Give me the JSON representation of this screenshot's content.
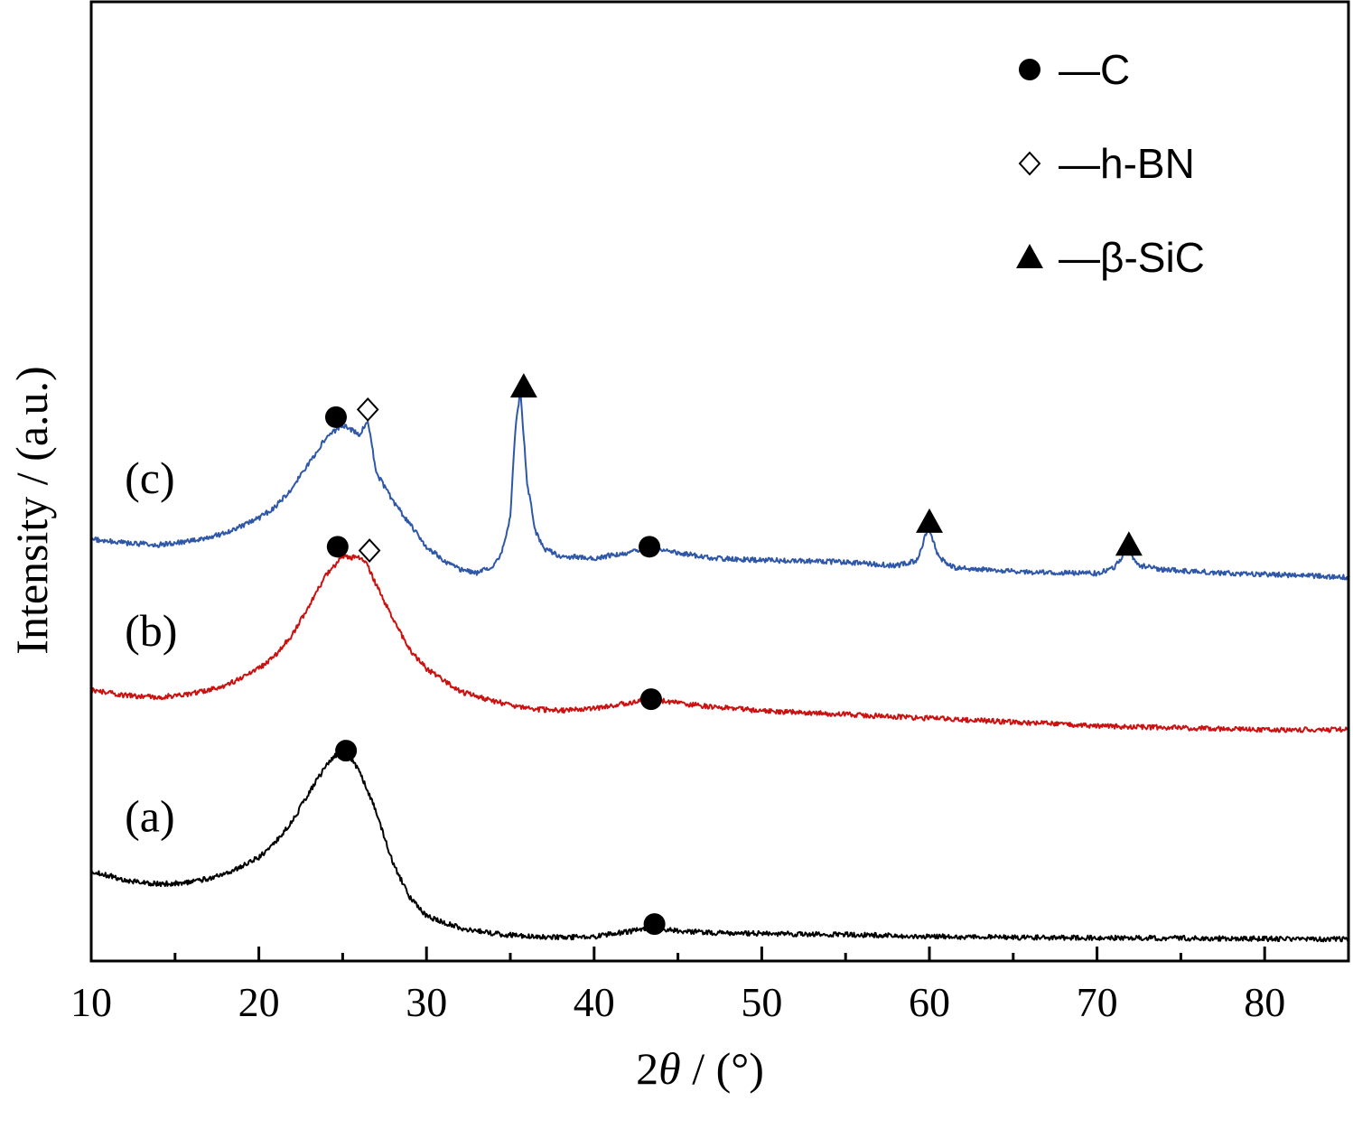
{
  "chart_data": {
    "type": "line",
    "title": "",
    "xlabel_prefix": "2",
    "xlabel_theta": "θ",
    "xlabel_suffix": " / (°)",
    "ylabel": "Intensity / (a.u.)",
    "xlim": [
      10,
      85
    ],
    "x_ticks": [
      10,
      20,
      30,
      40,
      50,
      60,
      70,
      80
    ],
    "x_minor_ticks": [
      15,
      25,
      35,
      45,
      55,
      65,
      75
    ],
    "y_ticks_shown": false,
    "grid": false,
    "legend_placement": "top-right",
    "legend": [
      {
        "marker": "circle",
        "label": "—C"
      },
      {
        "marker": "diamond",
        "label": "—h-BN"
      },
      {
        "marker": "triangle",
        "label": "—β-SiC"
      }
    ],
    "series": [
      {
        "name": "(a)",
        "color": "#000000",
        "x": [
          10,
          12,
          14,
          16,
          18,
          20,
          21,
          22,
          23,
          24,
          24.5,
          25,
          25.5,
          26,
          27,
          28,
          29,
          30,
          32,
          34,
          36,
          38,
          40,
          42,
          43.5,
          45,
          47,
          50,
          55,
          60,
          65,
          70,
          75,
          80,
          85
        ],
        "y": [
          36,
          31,
          29,
          30,
          34,
          43,
          51,
          62,
          77,
          91,
          96,
          98,
          95,
          88,
          67,
          40,
          22,
          12,
          6,
          3,
          1.5,
          1,
          1.5,
          4,
          6,
          4.5,
          3.5,
          3,
          2.5,
          1.5,
          1,
          0.8,
          0.6,
          0.3,
          0
        ]
      },
      {
        "name": "(b)",
        "color": "#cc1111",
        "x": [
          10,
          12,
          14,
          16,
          18,
          20,
          21,
          22,
          23,
          24,
          25,
          26,
          26.5,
          27,
          28,
          29,
          30,
          32,
          34,
          36,
          38,
          40,
          42,
          43.5,
          45,
          47,
          50,
          55,
          60,
          65,
          70,
          75,
          80,
          85
        ],
        "y": [
          131,
          128,
          127,
          129,
          133,
          142,
          149,
          160,
          175,
          191,
          201,
          200,
          196,
          186,
          168,
          152,
          142,
          130,
          125,
          121,
          120,
          121,
          124,
          126,
          124,
          122,
          120,
          118,
          116,
          114,
          112,
          111,
          110,
          110
        ]
      },
      {
        "name": "(c)",
        "color": "#2f57a8",
        "x": [
          10,
          12,
          14,
          16,
          18,
          20,
          21,
          22,
          23,
          24,
          25,
          26,
          26.5,
          27,
          28,
          29,
          30,
          31,
          32,
          33,
          34,
          34.5,
          35,
          35.3,
          35.6,
          36,
          36.5,
          37,
          38,
          40,
          42,
          43.5,
          45,
          47,
          50,
          55,
          58,
          59.3,
          59.9,
          60.6,
          61.5,
          65,
          70,
          71,
          71.8,
          72.6,
          74,
          78,
          82,
          85
        ],
        "y": [
          210,
          208,
          207,
          209,
          213,
          221,
          227,
          237,
          250,
          263,
          270,
          265,
          272,
          245,
          230,
          218,
          206,
          199,
          194,
          192,
          196,
          203,
          222,
          268,
          288,
          240,
          214,
          205,
          201,
          200,
          203,
          206,
          203,
          200,
          199,
          198,
          196,
          199,
          216,
          200,
          195,
          193,
          192,
          195,
          204,
          196,
          194,
          192,
          191,
          190
        ]
      }
    ],
    "phase_markers": [
      {
        "marker": "circle",
        "x": 25.2,
        "level": 99
      },
      {
        "marker": "circle",
        "x": 43.6,
        "level": 8
      },
      {
        "marker": "circle",
        "x": 24.7,
        "level": 206
      },
      {
        "marker": "circle",
        "x": 43.4,
        "level": 126
      },
      {
        "marker": "diamond",
        "x": 26.6,
        "level": 204
      },
      {
        "marker": "circle",
        "x": 24.6,
        "level": 274
      },
      {
        "marker": "circle",
        "x": 43.3,
        "level": 206
      },
      {
        "marker": "diamond",
        "x": 26.5,
        "level": 278
      },
      {
        "marker": "triangle",
        "x": 35.8,
        "level": 290
      },
      {
        "marker": "triangle",
        "x": 60.0,
        "level": 219
      },
      {
        "marker": "triangle",
        "x": 71.9,
        "level": 207
      }
    ],
    "curve_labels": [
      {
        "text": "(a)",
        "series": "(a)"
      },
      {
        "text": "(b)",
        "series": "(b)"
      },
      {
        "text": "(c)",
        "series": "(c)"
      }
    ]
  }
}
